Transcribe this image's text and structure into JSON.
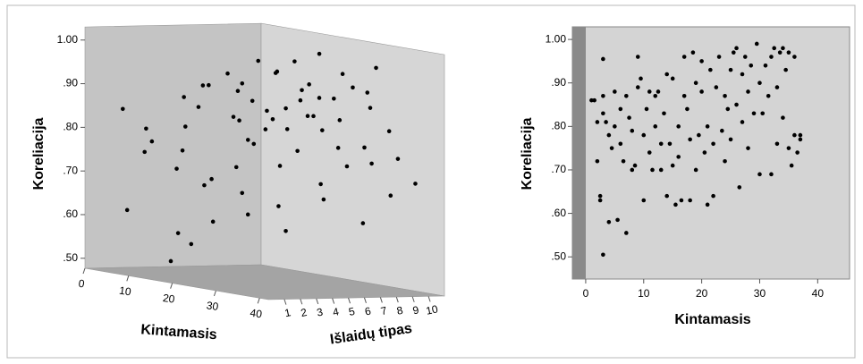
{
  "chart_data": [
    {
      "type": "scatter3d",
      "y_label": "Koreliacija",
      "x_label": "Kintamasis",
      "z_label": "Išlaidų tipas",
      "color": "#000000",
      "x": [
        5,
        6,
        8,
        10,
        12,
        14,
        15,
        16,
        17,
        18,
        20,
        22,
        24,
        25,
        26,
        28,
        30,
        32,
        34,
        36,
        38,
        40,
        8,
        10,
        12,
        14,
        16,
        18,
        20,
        22,
        24,
        26,
        28,
        30,
        5,
        7,
        9,
        11,
        13,
        15,
        17,
        19,
        21,
        23,
        25,
        27,
        29,
        31,
        33,
        35,
        37,
        39,
        3,
        4,
        6,
        2,
        3,
        10,
        20,
        30,
        35,
        40,
        12,
        18,
        24,
        28,
        32,
        36
      ],
      "z": [
        1,
        1,
        2,
        1,
        3,
        2,
        3,
        1,
        2,
        3,
        4,
        2,
        4,
        3,
        5,
        5,
        4,
        6,
        5,
        6,
        7,
        7,
        4,
        5,
        6,
        6,
        7,
        7,
        8,
        8,
        9,
        9,
        10,
        10,
        6,
        7,
        8,
        9,
        10,
        9,
        10,
        5,
        6,
        7,
        8,
        9,
        8,
        9,
        10,
        10,
        9,
        10,
        3,
        5,
        8,
        9,
        10,
        3,
        2,
        2,
        3,
        4,
        8,
        9,
        6,
        7,
        8,
        8
      ],
      "values": [
        0.85,
        0.62,
        0.78,
        0.76,
        0.82,
        0.58,
        0.87,
        0.52,
        0.56,
        0.71,
        0.74,
        0.62,
        0.8,
        0.69,
        0.66,
        0.84,
        0.76,
        0.72,
        0.88,
        0.81,
        0.64,
        0.78,
        0.88,
        0.91,
        0.84,
        0.92,
        0.86,
        0.95,
        0.89,
        0.93,
        0.9,
        0.96,
        0.92,
        0.98,
        0.9,
        0.93,
        0.87,
        0.94,
        0.9,
        0.97,
        0.99,
        0.8,
        0.85,
        0.78,
        0.83,
        0.75,
        0.86,
        0.8,
        0.84,
        0.78,
        0.7,
        0.73,
        0.8,
        0.75,
        0.82,
        0.88,
        0.95,
        0.72,
        0.7,
        0.65,
        0.62,
        0.7,
        0.81,
        0.85,
        0.88,
        0.91,
        0.94,
        0.9
      ],
      "xlim": [
        0,
        42
      ],
      "zlim": [
        0,
        11
      ],
      "ylim": [
        0.477,
        1.03
      ],
      "xticks": [
        0,
        10,
        20,
        30,
        40
      ],
      "zticks": [
        1,
        2,
        3,
        4,
        5,
        6,
        7,
        8,
        9,
        10
      ],
      "yticks": [
        {
          "value": 0.5,
          "label": ".50"
        },
        {
          "value": 0.6,
          "label": ".60"
        },
        {
          "value": 0.7,
          "label": ".70"
        },
        {
          "value": 0.8,
          "label": ".80"
        },
        {
          "value": 0.9,
          "label": ".90"
        },
        {
          "value": 1,
          "label": "1.00"
        }
      ]
    },
    {
      "type": "scatter",
      "y_label": "Koreliacija",
      "x_label": "Kintamasis",
      "color": "#000000",
      "x": [
        1,
        1.5,
        2,
        2,
        2.5,
        2.5,
        3,
        3,
        3,
        3,
        3.5,
        4,
        4,
        4.5,
        5,
        5,
        5.5,
        6,
        6,
        6.5,
        7,
        7,
        7.5,
        8,
        8,
        8.5,
        9,
        9,
        9.5,
        10,
        10,
        10.5,
        11,
        11,
        11.5,
        12,
        12,
        12.5,
        13,
        13,
        13.5,
        14,
        14,
        14.5,
        15,
        15,
        15.5,
        16,
        16,
        16.5,
        17,
        17,
        17.5,
        18,
        18,
        18.5,
        19,
        19,
        19.5,
        20,
        20,
        20.5,
        21,
        21,
        21.5,
        22,
        22,
        22.5,
        23,
        23.5,
        24,
        24,
        24.5,
        25,
        25,
        25.5,
        26,
        26,
        26.5,
        27,
        27,
        27.5,
        28,
        28,
        28.5,
        29,
        29.5,
        30,
        30,
        30.5,
        31,
        31.5,
        32,
        32,
        32.5,
        33,
        33,
        33.5,
        34,
        34,
        34.5,
        35,
        35,
        35.5,
        36,
        36,
        36.5,
        37,
        37
      ],
      "values": [
        0.86,
        0.86,
        0.81,
        0.72,
        0.64,
        0.63,
        0.955,
        0.505,
        0.87,
        0.83,
        0.81,
        0.58,
        0.78,
        0.75,
        0.88,
        0.8,
        0.585,
        0.76,
        0.84,
        0.72,
        0.555,
        0.87,
        0.82,
        0.7,
        0.79,
        0.71,
        0.96,
        0.89,
        0.91,
        0.78,
        0.63,
        0.84,
        0.88,
        0.74,
        0.7,
        0.87,
        0.8,
        0.88,
        0.76,
        0.7,
        0.83,
        0.92,
        0.64,
        0.76,
        0.71,
        0.91,
        0.62,
        0.8,
        0.73,
        0.63,
        0.87,
        0.96,
        0.84,
        0.77,
        0.63,
        0.97,
        0.9,
        0.7,
        0.78,
        0.95,
        0.88,
        0.74,
        0.8,
        0.62,
        0.93,
        0.76,
        0.64,
        0.89,
        0.96,
        0.79,
        0.72,
        0.87,
        0.84,
        0.93,
        0.77,
        0.97,
        0.98,
        0.85,
        0.66,
        0.92,
        0.81,
        0.96,
        0.88,
        0.75,
        0.94,
        0.83,
        0.99,
        0.69,
        0.9,
        0.83,
        0.94,
        0.87,
        0.96,
        0.69,
        0.98,
        0.76,
        0.89,
        0.97,
        0.82,
        0.98,
        0.93,
        0.75,
        0.97,
        0.71,
        0.96,
        0.78,
        0.74,
        0.78,
        0.77
      ],
      "xlim": [
        -2.3,
        45.5
      ],
      "ylim": [
        0.449,
        1.029
      ],
      "xticks": [
        0,
        10,
        20,
        30,
        40
      ],
      "yticks": [
        {
          "value": 0.5,
          "label": ".50"
        },
        {
          "value": 0.6,
          "label": ".60"
        },
        {
          "value": 0.7,
          "label": ".70"
        },
        {
          "value": 0.8,
          "label": ".80"
        },
        {
          "value": 0.9,
          "label": ".90"
        },
        {
          "value": 1,
          "label": "1.00"
        }
      ]
    }
  ]
}
